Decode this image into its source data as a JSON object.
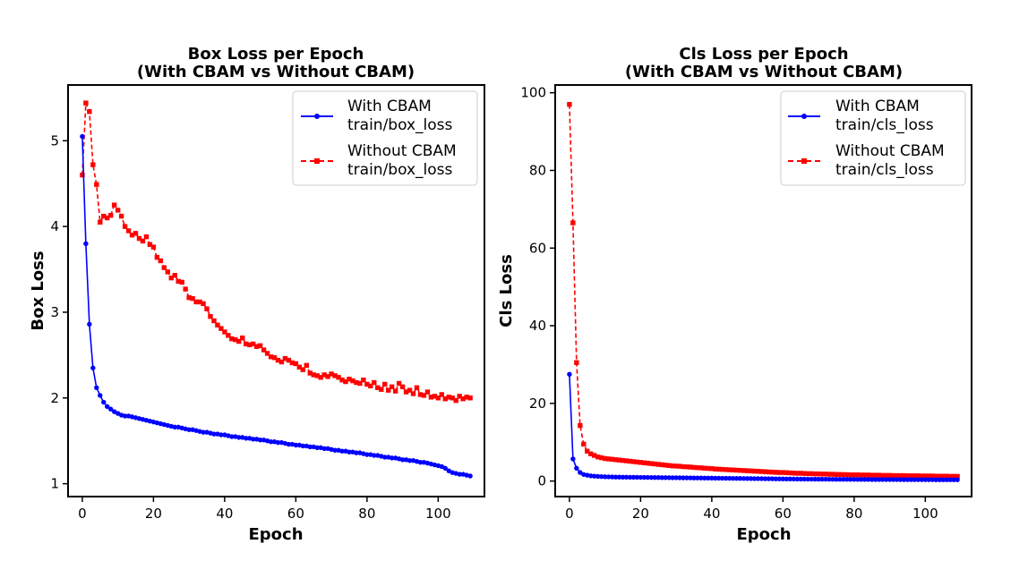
{
  "chart_data": [
    {
      "type": "line",
      "title_line1": "Box Loss per Epoch",
      "title_line2": "(With CBAM vs Without CBAM)",
      "xlabel": "Epoch",
      "ylabel": "Box Loss",
      "xlim": [
        -4,
        113
      ],
      "ylim": [
        0.85,
        5.65
      ],
      "xticks": [
        0,
        20,
        40,
        60,
        80,
        100
      ],
      "yticks": [
        1,
        2,
        3,
        4,
        5
      ],
      "legend_position": "upper right",
      "legend": [
        "With CBAM\ntrain/box_loss",
        "Without CBAM\ntrain/box_loss"
      ],
      "series": [
        {
          "name": "With CBAM train/box_loss",
          "color": "#0000ff",
          "style": "solid",
          "marker": "circle",
          "values": [
            5.05,
            3.8,
            2.86,
            2.35,
            2.12,
            2.03,
            1.95,
            1.9,
            1.87,
            1.84,
            1.82,
            1.8,
            1.79,
            1.79,
            1.78,
            1.77,
            1.76,
            1.75,
            1.74,
            1.73,
            1.72,
            1.71,
            1.7,
            1.69,
            1.68,
            1.67,
            1.66,
            1.66,
            1.65,
            1.64,
            1.63,
            1.63,
            1.62,
            1.61,
            1.6,
            1.6,
            1.59,
            1.58,
            1.58,
            1.57,
            1.57,
            1.56,
            1.55,
            1.55,
            1.54,
            1.54,
            1.53,
            1.53,
            1.52,
            1.52,
            1.51,
            1.51,
            1.5,
            1.49,
            1.49,
            1.48,
            1.48,
            1.47,
            1.46,
            1.46,
            1.45,
            1.45,
            1.44,
            1.44,
            1.43,
            1.43,
            1.42,
            1.42,
            1.41,
            1.41,
            1.4,
            1.39,
            1.39,
            1.38,
            1.38,
            1.37,
            1.37,
            1.36,
            1.36,
            1.35,
            1.34,
            1.34,
            1.33,
            1.33,
            1.32,
            1.31,
            1.31,
            1.3,
            1.3,
            1.29,
            1.28,
            1.28,
            1.27,
            1.27,
            1.26,
            1.25,
            1.25,
            1.24,
            1.23,
            1.22,
            1.21,
            1.2,
            1.18,
            1.15,
            1.13,
            1.12,
            1.11,
            1.11,
            1.1,
            1.09
          ]
        },
        {
          "name": "Without CBAM train/box_loss",
          "color": "#ff0000",
          "style": "dashed",
          "marker": "square",
          "values": [
            4.6,
            5.44,
            5.34,
            4.72,
            4.49,
            4.05,
            4.12,
            4.1,
            4.13,
            4.25,
            4.19,
            4.12,
            4.0,
            3.95,
            3.9,
            3.92,
            3.86,
            3.83,
            3.88,
            3.79,
            3.76,
            3.64,
            3.6,
            3.52,
            3.47,
            3.4,
            3.43,
            3.36,
            3.35,
            3.27,
            3.17,
            3.16,
            3.12,
            3.12,
            3.1,
            3.04,
            2.95,
            2.9,
            2.85,
            2.81,
            2.77,
            2.73,
            2.69,
            2.68,
            2.66,
            2.7,
            2.63,
            2.62,
            2.63,
            2.6,
            2.61,
            2.56,
            2.52,
            2.48,
            2.47,
            2.44,
            2.42,
            2.46,
            2.44,
            2.41,
            2.4,
            2.36,
            2.33,
            2.38,
            2.29,
            2.27,
            2.26,
            2.24,
            2.27,
            2.25,
            2.28,
            2.26,
            2.24,
            2.21,
            2.19,
            2.22,
            2.2,
            2.18,
            2.17,
            2.21,
            2.16,
            2.14,
            2.18,
            2.12,
            2.1,
            2.16,
            2.09,
            2.13,
            2.08,
            2.17,
            2.13,
            2.07,
            2.09,
            2.05,
            2.12,
            2.04,
            2.03,
            2.07,
            2.01,
            2.02,
            2.0,
            2.04,
            1.99,
            2.01,
            2.0,
            1.97,
            2.02,
            1.99,
            2.01,
            2.0
          ]
        }
      ]
    },
    {
      "type": "line",
      "title_line1": "Cls Loss per Epoch",
      "title_line2": "(With CBAM vs Without CBAM)",
      "xlabel": "Epoch",
      "ylabel": "Cls Loss",
      "xlim": [
        -4,
        113
      ],
      "ylim": [
        -4,
        102
      ],
      "xticks": [
        0,
        20,
        40,
        60,
        80,
        100
      ],
      "yticks": [
        0,
        20,
        40,
        60,
        80,
        100
      ],
      "legend_position": "upper right",
      "legend": [
        "With CBAM\ntrain/cls_loss",
        "Without CBAM\ntrain/cls_loss"
      ],
      "series": [
        {
          "name": "With CBAM train/cls_loss",
          "color": "#0000ff",
          "style": "solid",
          "marker": "circle",
          "values": [
            27.5,
            5.7,
            3.3,
            2.2,
            1.7,
            1.5,
            1.35,
            1.25,
            1.2,
            1.15,
            1.1,
            1.08,
            1.05,
            1.03,
            1.01,
            1.0,
            0.99,
            0.98,
            0.97,
            0.96,
            0.95,
            0.94,
            0.93,
            0.92,
            0.91,
            0.9,
            0.89,
            0.88,
            0.87,
            0.86,
            0.85,
            0.84,
            0.83,
            0.82,
            0.81,
            0.8,
            0.79,
            0.78,
            0.77,
            0.76,
            0.75,
            0.74,
            0.73,
            0.72,
            0.71,
            0.7,
            0.69,
            0.68,
            0.67,
            0.66,
            0.65,
            0.64,
            0.63,
            0.62,
            0.61,
            0.6,
            0.59,
            0.58,
            0.57,
            0.56,
            0.55,
            0.54,
            0.53,
            0.52,
            0.51,
            0.5,
            0.5,
            0.49,
            0.49,
            0.48,
            0.48,
            0.47,
            0.47,
            0.46,
            0.46,
            0.45,
            0.45,
            0.44,
            0.44,
            0.43,
            0.43,
            0.42,
            0.42,
            0.41,
            0.41,
            0.4,
            0.4,
            0.4,
            0.39,
            0.39,
            0.39,
            0.38,
            0.38,
            0.38,
            0.37,
            0.37,
            0.37,
            0.36,
            0.36,
            0.36,
            0.35,
            0.35,
            0.35,
            0.34,
            0.34,
            0.34,
            0.33,
            0.33,
            0.33,
            0.32
          ]
        },
        {
          "name": "Without CBAM train/cls_loss",
          "color": "#ff0000",
          "style": "dashed",
          "marker": "square",
          "values": [
            97.0,
            66.5,
            30.5,
            14.3,
            9.5,
            7.7,
            7.0,
            6.6,
            6.2,
            6.0,
            5.8,
            5.7,
            5.6,
            5.5,
            5.4,
            5.3,
            5.2,
            5.1,
            5.0,
            4.9,
            4.8,
            4.7,
            4.6,
            4.5,
            4.4,
            4.3,
            4.2,
            4.1,
            4.0,
            3.9,
            3.85,
            3.8,
            3.7,
            3.65,
            3.6,
            3.5,
            3.45,
            3.4,
            3.3,
            3.25,
            3.2,
            3.1,
            3.05,
            3.0,
            2.95,
            2.9,
            2.85,
            2.8,
            2.75,
            2.7,
            2.65,
            2.6,
            2.55,
            2.5,
            2.45,
            2.4,
            2.35,
            2.3,
            2.25,
            2.2,
            2.2,
            2.15,
            2.1,
            2.05,
            2.0,
            2.0,
            1.95,
            1.9,
            1.9,
            1.85,
            1.85,
            1.8,
            1.8,
            1.75,
            1.75,
            1.7,
            1.7,
            1.65,
            1.65,
            1.6,
            1.6,
            1.6,
            1.55,
            1.55,
            1.55,
            1.5,
            1.5,
            1.5,
            1.45,
            1.45,
            1.45,
            1.4,
            1.4,
            1.4,
            1.4,
            1.35,
            1.35,
            1.35,
            1.35,
            1.3,
            1.3,
            1.3,
            1.3,
            1.25,
            1.25,
            1.25,
            1.25,
            1.2,
            1.2,
            1.2
          ]
        }
      ]
    }
  ]
}
